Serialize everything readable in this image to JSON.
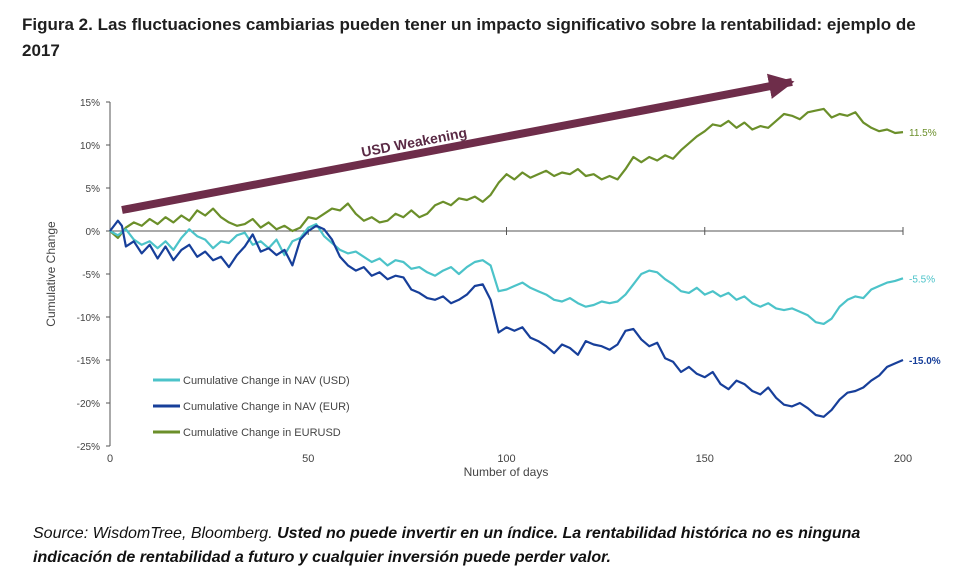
{
  "title": "Figura 2. Las fluctuaciones cambiarias pueden tener un impacto significativo sobre la rentabilidad: ejemplo de 2017",
  "source": {
    "label": "Source: WisdomTree, Bloomberg.",
    "note": "Usted no puede invertir en un índice. La rentabilidad histórica no es ninguna indicación de rentabilidad a futuro y cualquier inversión puede perder valor."
  },
  "colors": {
    "usd": "#4cc3c9",
    "eur": "#173f9a",
    "eurusd": "#6b8f2a",
    "arrow": "#6e2d4a",
    "axis": "#555555"
  },
  "chart_data": {
    "type": "line",
    "xlabel": "Number of days",
    "ylabel": "Cumulative Change",
    "xlim": [
      0,
      200
    ],
    "ylim": [
      -25,
      15
    ],
    "xticks": [
      0,
      50,
      100,
      150,
      200
    ],
    "yticks": [
      15,
      10,
      5,
      0,
      -5,
      -10,
      -15,
      -20,
      -25
    ],
    "ytick_labels": [
      "15%",
      "10%",
      "5%",
      "0%",
      "-5%",
      "-10%",
      "-15%",
      "-20%",
      "-25%"
    ],
    "annotation": "USD Weakening",
    "series": [
      {
        "key": "usd",
        "name": "Cumulative Change in NAV (USD)",
        "end_label": "-5.5%",
        "points": [
          [
            0,
            0
          ],
          [
            2,
            -0.5
          ],
          [
            4,
            0.2
          ],
          [
            6,
            -1.0
          ],
          [
            8,
            -1.6
          ],
          [
            10,
            -1.2
          ],
          [
            12,
            -2.0
          ],
          [
            14,
            -1.2
          ],
          [
            16,
            -2.2
          ],
          [
            18,
            -0.8
          ],
          [
            20,
            0.2
          ],
          [
            22,
            -0.6
          ],
          [
            24,
            -1.0
          ],
          [
            26,
            -2.0
          ],
          [
            28,
            -1.2
          ],
          [
            30,
            -1.4
          ],
          [
            32,
            -0.5
          ],
          [
            34,
            -0.2
          ],
          [
            36,
            -1.6
          ],
          [
            38,
            -1.2
          ],
          [
            40,
            -2.0
          ],
          [
            42,
            -1.0
          ],
          [
            44,
            -2.8
          ],
          [
            46,
            -1.2
          ],
          [
            48,
            -0.8
          ],
          [
            50,
            0.4
          ],
          [
            52,
            0.8
          ],
          [
            54,
            -0.6
          ],
          [
            56,
            -1.4
          ],
          [
            58,
            -2.2
          ],
          [
            60,
            -2.6
          ],
          [
            62,
            -2.4
          ],
          [
            64,
            -3.0
          ],
          [
            66,
            -3.6
          ],
          [
            68,
            -3.2
          ],
          [
            70,
            -4.0
          ],
          [
            72,
            -3.4
          ],
          [
            74,
            -3.6
          ],
          [
            76,
            -4.4
          ],
          [
            78,
            -4.2
          ],
          [
            80,
            -4.8
          ],
          [
            82,
            -5.2
          ],
          [
            84,
            -4.6
          ],
          [
            86,
            -4.2
          ],
          [
            88,
            -5.0
          ],
          [
            90,
            -4.2
          ],
          [
            92,
            -3.6
          ],
          [
            94,
            -3.4
          ],
          [
            96,
            -4.0
          ],
          [
            98,
            -7.0
          ],
          [
            100,
            -6.8
          ],
          [
            102,
            -6.4
          ],
          [
            104,
            -6.0
          ],
          [
            106,
            -6.6
          ],
          [
            108,
            -7.0
          ],
          [
            110,
            -7.4
          ],
          [
            112,
            -8.0
          ],
          [
            114,
            -8.2
          ],
          [
            116,
            -7.8
          ],
          [
            118,
            -8.4
          ],
          [
            120,
            -8.8
          ],
          [
            122,
            -8.6
          ],
          [
            124,
            -8.2
          ],
          [
            126,
            -8.4
          ],
          [
            128,
            -8.2
          ],
          [
            130,
            -7.4
          ],
          [
            132,
            -6.2
          ],
          [
            134,
            -5.0
          ],
          [
            136,
            -4.6
          ],
          [
            138,
            -4.8
          ],
          [
            140,
            -5.6
          ],
          [
            142,
            -6.2
          ],
          [
            144,
            -7.0
          ],
          [
            146,
            -7.2
          ],
          [
            148,
            -6.6
          ],
          [
            150,
            -7.4
          ],
          [
            152,
            -7.0
          ],
          [
            154,
            -7.6
          ],
          [
            156,
            -7.2
          ],
          [
            158,
            -8.0
          ],
          [
            160,
            -7.6
          ],
          [
            162,
            -8.4
          ],
          [
            164,
            -8.8
          ],
          [
            166,
            -8.4
          ],
          [
            168,
            -9.0
          ],
          [
            170,
            -9.2
          ],
          [
            172,
            -9.0
          ],
          [
            174,
            -9.4
          ],
          [
            176,
            -9.8
          ],
          [
            178,
            -10.6
          ],
          [
            180,
            -10.8
          ],
          [
            182,
            -10.2
          ],
          [
            184,
            -8.8
          ],
          [
            186,
            -8.0
          ],
          [
            188,
            -7.6
          ],
          [
            190,
            -7.8
          ],
          [
            192,
            -6.8
          ],
          [
            194,
            -6.4
          ],
          [
            196,
            -6.0
          ],
          [
            198,
            -5.8
          ],
          [
            200,
            -5.5
          ]
        ]
      },
      {
        "key": "eur",
        "name": "Cumulative Change in NAV (EUR)",
        "end_label": "-15.0%",
        "points": [
          [
            0,
            0
          ],
          [
            2,
            1.2
          ],
          [
            3,
            0.6
          ],
          [
            4,
            -1.8
          ],
          [
            6,
            -1.2
          ],
          [
            8,
            -2.6
          ],
          [
            10,
            -1.6
          ],
          [
            12,
            -3.2
          ],
          [
            14,
            -1.8
          ],
          [
            16,
            -3.4
          ],
          [
            18,
            -2.2
          ],
          [
            20,
            -1.6
          ],
          [
            22,
            -3.0
          ],
          [
            24,
            -2.4
          ],
          [
            26,
            -3.4
          ],
          [
            28,
            -3.0
          ],
          [
            30,
            -4.2
          ],
          [
            32,
            -2.8
          ],
          [
            34,
            -1.8
          ],
          [
            36,
            -0.4
          ],
          [
            38,
            -2.4
          ],
          [
            40,
            -2.0
          ],
          [
            42,
            -2.8
          ],
          [
            44,
            -2.2
          ],
          [
            46,
            -4.0
          ],
          [
            48,
            -1.0
          ],
          [
            50,
            0.0
          ],
          [
            52,
            0.6
          ],
          [
            54,
            0.2
          ],
          [
            56,
            -1.0
          ],
          [
            58,
            -3.0
          ],
          [
            60,
            -4.0
          ],
          [
            62,
            -4.6
          ],
          [
            64,
            -4.2
          ],
          [
            66,
            -5.2
          ],
          [
            68,
            -4.8
          ],
          [
            70,
            -5.6
          ],
          [
            72,
            -5.2
          ],
          [
            74,
            -5.4
          ],
          [
            76,
            -6.8
          ],
          [
            78,
            -7.2
          ],
          [
            80,
            -7.8
          ],
          [
            82,
            -8.0
          ],
          [
            84,
            -7.6
          ],
          [
            86,
            -8.4
          ],
          [
            88,
            -8.0
          ],
          [
            90,
            -7.4
          ],
          [
            92,
            -6.4
          ],
          [
            94,
            -6.2
          ],
          [
            96,
            -8.0
          ],
          [
            98,
            -11.8
          ],
          [
            100,
            -11.2
          ],
          [
            102,
            -11.6
          ],
          [
            104,
            -11.2
          ],
          [
            106,
            -12.4
          ],
          [
            108,
            -12.8
          ],
          [
            110,
            -13.4
          ],
          [
            112,
            -14.2
          ],
          [
            114,
            -13.2
          ],
          [
            116,
            -13.6
          ],
          [
            118,
            -14.4
          ],
          [
            120,
            -12.8
          ],
          [
            122,
            -13.2
          ],
          [
            124,
            -13.4
          ],
          [
            126,
            -13.8
          ],
          [
            128,
            -13.2
          ],
          [
            130,
            -11.6
          ],
          [
            132,
            -11.4
          ],
          [
            134,
            -12.6
          ],
          [
            136,
            -13.4
          ],
          [
            138,
            -13.0
          ],
          [
            140,
            -14.8
          ],
          [
            142,
            -15.2
          ],
          [
            144,
            -16.4
          ],
          [
            146,
            -15.8
          ],
          [
            148,
            -16.6
          ],
          [
            150,
            -17.0
          ],
          [
            152,
            -16.4
          ],
          [
            154,
            -17.8
          ],
          [
            156,
            -18.4
          ],
          [
            158,
            -17.4
          ],
          [
            160,
            -17.8
          ],
          [
            162,
            -18.6
          ],
          [
            164,
            -19.0
          ],
          [
            166,
            -18.2
          ],
          [
            168,
            -19.4
          ],
          [
            170,
            -20.2
          ],
          [
            172,
            -20.4
          ],
          [
            174,
            -20.0
          ],
          [
            176,
            -20.6
          ],
          [
            178,
            -21.4
          ],
          [
            180,
            -21.6
          ],
          [
            182,
            -20.8
          ],
          [
            184,
            -19.6
          ],
          [
            186,
            -18.8
          ],
          [
            188,
            -18.6
          ],
          [
            190,
            -18.2
          ],
          [
            192,
            -17.4
          ],
          [
            194,
            -16.8
          ],
          [
            196,
            -15.8
          ],
          [
            198,
            -15.4
          ],
          [
            200,
            -15.0
          ]
        ]
      },
      {
        "key": "eurusd",
        "name": "Cumulative Change in EURUSD",
        "end_label": "11.5%",
        "points": [
          [
            0,
            0
          ],
          [
            2,
            -0.8
          ],
          [
            4,
            0.4
          ],
          [
            6,
            1.0
          ],
          [
            8,
            0.6
          ],
          [
            10,
            1.4
          ],
          [
            12,
            0.8
          ],
          [
            14,
            1.6
          ],
          [
            16,
            1.0
          ],
          [
            18,
            1.8
          ],
          [
            20,
            1.2
          ],
          [
            22,
            2.4
          ],
          [
            24,
            1.8
          ],
          [
            26,
            2.6
          ],
          [
            28,
            1.6
          ],
          [
            30,
            1.0
          ],
          [
            32,
            0.6
          ],
          [
            34,
            0.8
          ],
          [
            36,
            1.4
          ],
          [
            38,
            0.4
          ],
          [
            40,
            1.0
          ],
          [
            42,
            0.2
          ],
          [
            44,
            0.6
          ],
          [
            46,
            0.0
          ],
          [
            48,
            0.4
          ],
          [
            50,
            1.6
          ],
          [
            52,
            1.4
          ],
          [
            54,
            2.0
          ],
          [
            56,
            2.6
          ],
          [
            58,
            2.4
          ],
          [
            60,
            3.2
          ],
          [
            62,
            2.0
          ],
          [
            64,
            1.2
          ],
          [
            66,
            1.6
          ],
          [
            68,
            1.0
          ],
          [
            70,
            1.2
          ],
          [
            72,
            2.0
          ],
          [
            74,
            1.6
          ],
          [
            76,
            2.4
          ],
          [
            78,
            1.6
          ],
          [
            80,
            2.0
          ],
          [
            82,
            3.0
          ],
          [
            84,
            3.4
          ],
          [
            86,
            3.0
          ],
          [
            88,
            3.8
          ],
          [
            90,
            3.6
          ],
          [
            92,
            4.0
          ],
          [
            94,
            3.4
          ],
          [
            96,
            4.2
          ],
          [
            98,
            5.6
          ],
          [
            100,
            6.6
          ],
          [
            102,
            6.0
          ],
          [
            104,
            6.8
          ],
          [
            106,
            6.2
          ],
          [
            108,
            6.6
          ],
          [
            110,
            7.0
          ],
          [
            112,
            6.4
          ],
          [
            114,
            6.8
          ],
          [
            116,
            6.6
          ],
          [
            118,
            7.2
          ],
          [
            120,
            6.4
          ],
          [
            122,
            6.6
          ],
          [
            124,
            6.0
          ],
          [
            126,
            6.4
          ],
          [
            128,
            6.0
          ],
          [
            130,
            7.2
          ],
          [
            132,
            8.6
          ],
          [
            134,
            8.0
          ],
          [
            136,
            8.6
          ],
          [
            138,
            8.2
          ],
          [
            140,
            8.8
          ],
          [
            142,
            8.4
          ],
          [
            144,
            9.4
          ],
          [
            146,
            10.2
          ],
          [
            148,
            11.0
          ],
          [
            150,
            11.6
          ],
          [
            152,
            12.4
          ],
          [
            154,
            12.2
          ],
          [
            156,
            12.8
          ],
          [
            158,
            12.0
          ],
          [
            160,
            12.6
          ],
          [
            162,
            11.8
          ],
          [
            164,
            12.2
          ],
          [
            166,
            12.0
          ],
          [
            168,
            12.8
          ],
          [
            170,
            13.6
          ],
          [
            172,
            13.4
          ],
          [
            174,
            13.0
          ],
          [
            176,
            13.8
          ],
          [
            178,
            14.0
          ],
          [
            180,
            14.2
          ],
          [
            182,
            13.2
          ],
          [
            184,
            13.6
          ],
          [
            186,
            13.4
          ],
          [
            188,
            13.8
          ],
          [
            190,
            12.6
          ],
          [
            192,
            12.0
          ],
          [
            194,
            11.6
          ],
          [
            196,
            11.8
          ],
          [
            198,
            11.4
          ],
          [
            200,
            11.5
          ]
        ]
      }
    ]
  }
}
